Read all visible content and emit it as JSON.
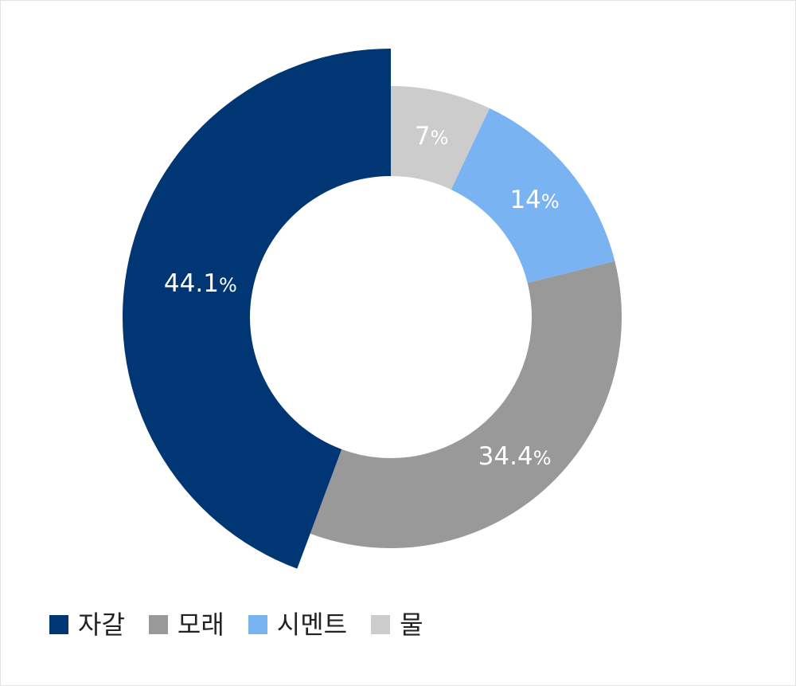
{
  "chart_data": {
    "type": "pie",
    "donut": true,
    "title": "",
    "legend_position": "bottom-left",
    "slices": [
      {
        "name": "물",
        "value": 7,
        "label": "7",
        "color": "#cccccc",
        "emphasized": false
      },
      {
        "name": "시멘트",
        "value": 14,
        "label": "14",
        "color": "#7ab3f2",
        "emphasized": false
      },
      {
        "name": "모래",
        "value": 34.4,
        "label": "34.4",
        "color": "#999999",
        "emphasized": false
      },
      {
        "name": "자갈",
        "value": 44.1,
        "label": "44.1",
        "color": "#003674",
        "emphasized": true
      }
    ],
    "unit": "%",
    "legend_order": [
      "자갈",
      "모래",
      "시멘트",
      "물"
    ]
  }
}
